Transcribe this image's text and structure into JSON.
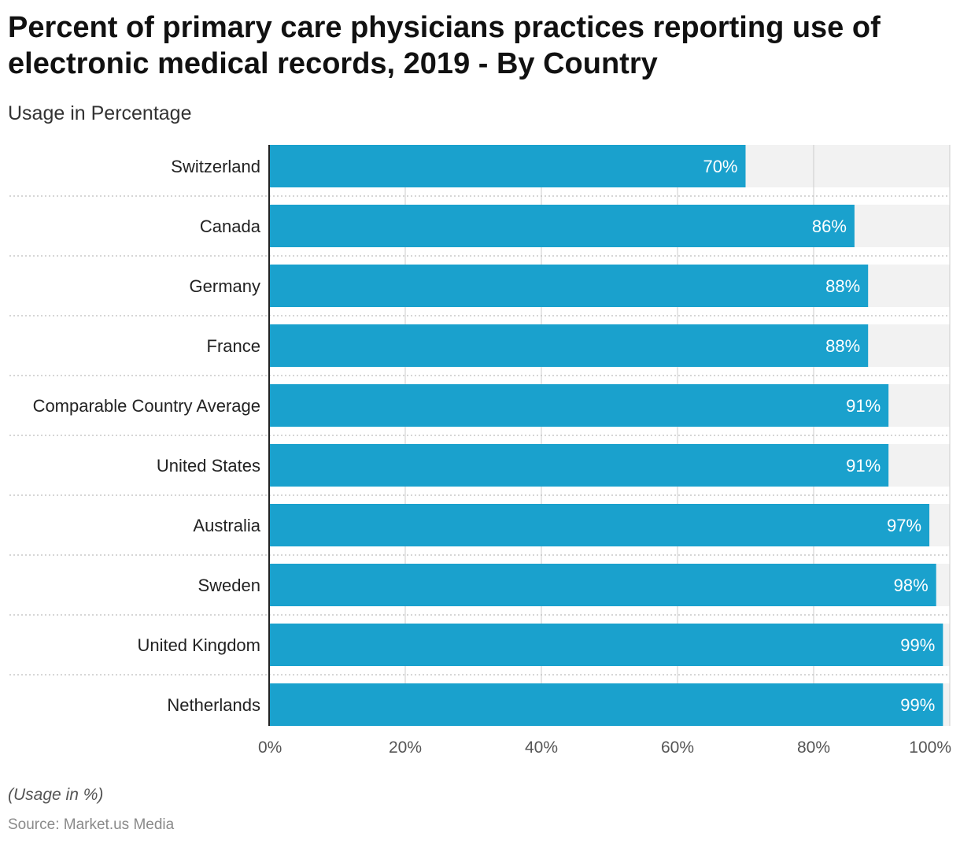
{
  "header": {
    "title": "Percent of primary care physicians practices reporting use of electronic medical records, 2019 - By Country",
    "subtitle": "Usage in Percentage"
  },
  "footer": {
    "note": "(Usage in %)",
    "source": "Source: Market.us Media"
  },
  "colors": {
    "bar": "#1aa1cd",
    "track": "#f2f2f2",
    "grid": "#cccccc",
    "axis": "#222222",
    "value_label": "#ffffff"
  },
  "chart_data": {
    "type": "bar",
    "orientation": "horizontal",
    "title": "Percent of primary care physicians practices reporting use of electronic medical records, 2019 - By Country",
    "subtitle": "Usage in Percentage",
    "categories": [
      "Switzerland",
      "Canada",
      "Germany",
      "France",
      "Comparable Country Average",
      "United States",
      "Australia",
      "Sweden",
      "United Kingdom",
      "Netherlands"
    ],
    "values": [
      70,
      86,
      88,
      88,
      91,
      91,
      97,
      98,
      99,
      99
    ],
    "value_labels": [
      "70%",
      "86%",
      "88%",
      "88%",
      "91%",
      "91%",
      "97%",
      "98%",
      "99%",
      "99%"
    ],
    "xlim": [
      0,
      100
    ],
    "x_ticks": [
      0,
      20,
      40,
      60,
      80,
      100
    ],
    "x_tick_labels": [
      "0%",
      "20%",
      "40%",
      "60%",
      "80%",
      "100%"
    ],
    "grid": true,
    "legend": "none"
  }
}
